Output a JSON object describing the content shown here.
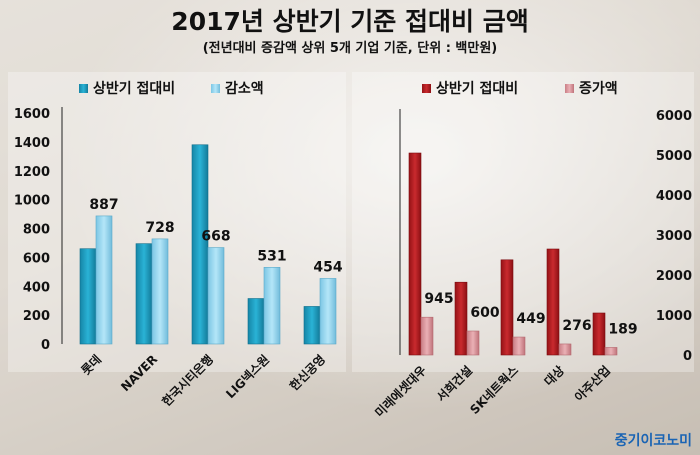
{
  "header": {
    "title": "2017년 상반기 기준 접대비 금액",
    "subtitle": "(전년대비 증감액 상위 5개 기업 기준, 단위 : 백만원)"
  },
  "brand": "중기이코노미",
  "colors": {
    "blue_dark": "#1a9cc0",
    "blue_light": "#8fd3ee",
    "red_dark": "#b0181c",
    "red_light": "#d98c92"
  },
  "chart_data": [
    {
      "type": "bar",
      "categories": [
        "롯데",
        "NAVER",
        "한국시티은행",
        "LIG넥스원",
        "한신공영"
      ],
      "series": [
        {
          "name": "상반기 접대비",
          "values": [
            660,
            695,
            1380,
            315,
            260
          ]
        },
        {
          "name": "감소액",
          "values": [
            887,
            728,
            668,
            531,
            454
          ]
        }
      ],
      "data_labels": [
        "887",
        "728",
        "668",
        "531",
        "454"
      ],
      "ylim": [
        0,
        1600
      ],
      "yticks": [
        "0",
        "200",
        "400",
        "600",
        "800",
        "1000",
        "1200",
        "1400",
        "1600"
      ],
      "legend": "top-left",
      "grid": false
    },
    {
      "type": "bar",
      "categories": [
        "미래에셋대우",
        "서희건설",
        "SK네트웍스",
        "대상",
        "아주산업"
      ],
      "series": [
        {
          "name": "상반기 접대비",
          "values": [
            5050,
            1820,
            2380,
            2650,
            1050
          ]
        },
        {
          "name": "증가액",
          "values": [
            945,
            600,
            449,
            276,
            189
          ]
        }
      ],
      "data_labels": [
        "945",
        "600",
        "449",
        "276",
        "189"
      ],
      "ylim": [
        0,
        6000
      ],
      "yticks": [
        "0",
        "1000",
        "2000",
        "3000",
        "4000",
        "5000",
        "6000"
      ],
      "legend": "top-left",
      "grid": false
    }
  ]
}
